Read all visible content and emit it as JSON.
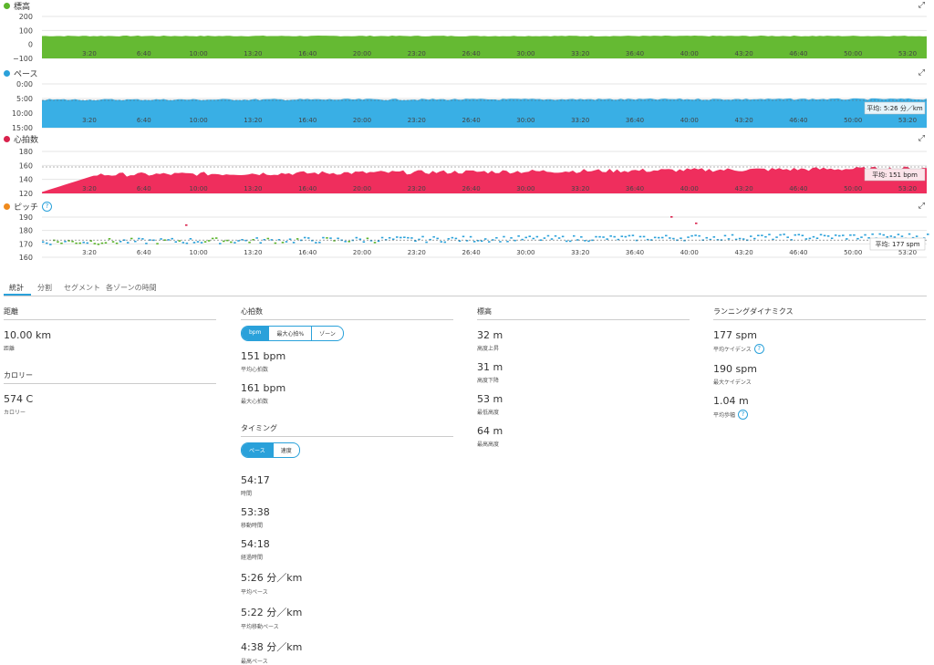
{
  "charts": [
    {
      "key": "elevation",
      "title": "標高",
      "color": "#5bb52c",
      "fill": "#65ba33",
      "yTicks": [
        "200",
        "100",
        "0",
        "−100"
      ],
      "ymin": -100,
      "ymax": 200,
      "invert": false,
      "base": 60,
      "amp": 3,
      "trend": 0,
      "badge": null,
      "help": false,
      "type": "area"
    },
    {
      "key": "pace",
      "title": "ペース",
      "color": "#2aa1da",
      "fill": "#39afe5",
      "yTicks": [
        "0:00",
        "5:00",
        "10:00",
        "15:00"
      ],
      "ymin": 0,
      "ymax": 15,
      "invert": true,
      "base": 5.4,
      "amp": 0.25,
      "trend": -0.2,
      "badge": "平均: 5:26 分／km",
      "help": false,
      "type": "area"
    },
    {
      "key": "heartrate",
      "title": "心拍数",
      "color": "#d9224c",
      "fill": "#ef2e5d",
      "yTicks": [
        "180",
        "160",
        "140",
        "120"
      ],
      "ymin": 120,
      "ymax": 180,
      "invert": false,
      "base": 146,
      "amp": 3,
      "trend": 10,
      "badge": "平均: 151 bpm",
      "help": false,
      "type": "area"
    },
    {
      "key": "cadence",
      "title": "ピッチ",
      "color": "#ef8a1d",
      "fill": "#2aa1da",
      "yTicks": [
        "190",
        "180",
        "170",
        "160"
      ],
      "ymin": 160,
      "ymax": 195,
      "invert": false,
      "base": 174,
      "amp": 2.5,
      "trend": 5,
      "badge": "平均: 177 spm",
      "help": true,
      "type": "scatter"
    }
  ],
  "xTicks": [
    "3:20",
    "6:40",
    "10:00",
    "13:20",
    "16:40",
    "20:00",
    "23:20",
    "26:40",
    "30:00",
    "33:20",
    "36:40",
    "40:00",
    "43:20",
    "46:40",
    "50:00",
    "53:20"
  ],
  "tabs": [
    "統計",
    "分割",
    "セグメント",
    "各ゾーンの時間"
  ],
  "distance": {
    "header": "距離",
    "value": "10.00 km",
    "label": "距離"
  },
  "calories": {
    "header": "カロリー",
    "value": "574 C",
    "label": "カロリー"
  },
  "heart": {
    "header": "心拍数",
    "toggle": [
      "bpm",
      "最大心拍%",
      "ゾーン"
    ],
    "items": [
      {
        "value": "151 bpm",
        "label": "平均心拍数"
      },
      {
        "value": "161 bpm",
        "label": "最大心拍数"
      }
    ]
  },
  "timing": {
    "header": "タイミング",
    "toggle": [
      "ペース",
      "速度"
    ],
    "items": [
      {
        "value": "54:17",
        "label": "時間"
      },
      {
        "value": "53:38",
        "label": "移動時間"
      },
      {
        "value": "54:18",
        "label": "経過時間"
      },
      {
        "value": "5:26 分／km",
        "label": "平均ペース"
      },
      {
        "value": "5:22 分／km",
        "label": "平均移動ペース"
      },
      {
        "value": "4:38 分／km",
        "label": "最高ペース"
      }
    ]
  },
  "elevation": {
    "header": "標高",
    "items": [
      {
        "value": "32 m",
        "label": "高度上昇"
      },
      {
        "value": "31 m",
        "label": "高度下降"
      },
      {
        "value": "53 m",
        "label": "最低高度"
      },
      {
        "value": "64 m",
        "label": "最高高度"
      }
    ]
  },
  "dynamics": {
    "header": "ランニングダイナミクス",
    "items": [
      {
        "value": "177 spm",
        "label": "平均ケイデンス",
        "help": true
      },
      {
        "value": "190 spm",
        "label": "最大ケイデンス",
        "help": false
      },
      {
        "value": "1.04 m",
        "label": "平均歩幅",
        "help": true
      }
    ]
  }
}
